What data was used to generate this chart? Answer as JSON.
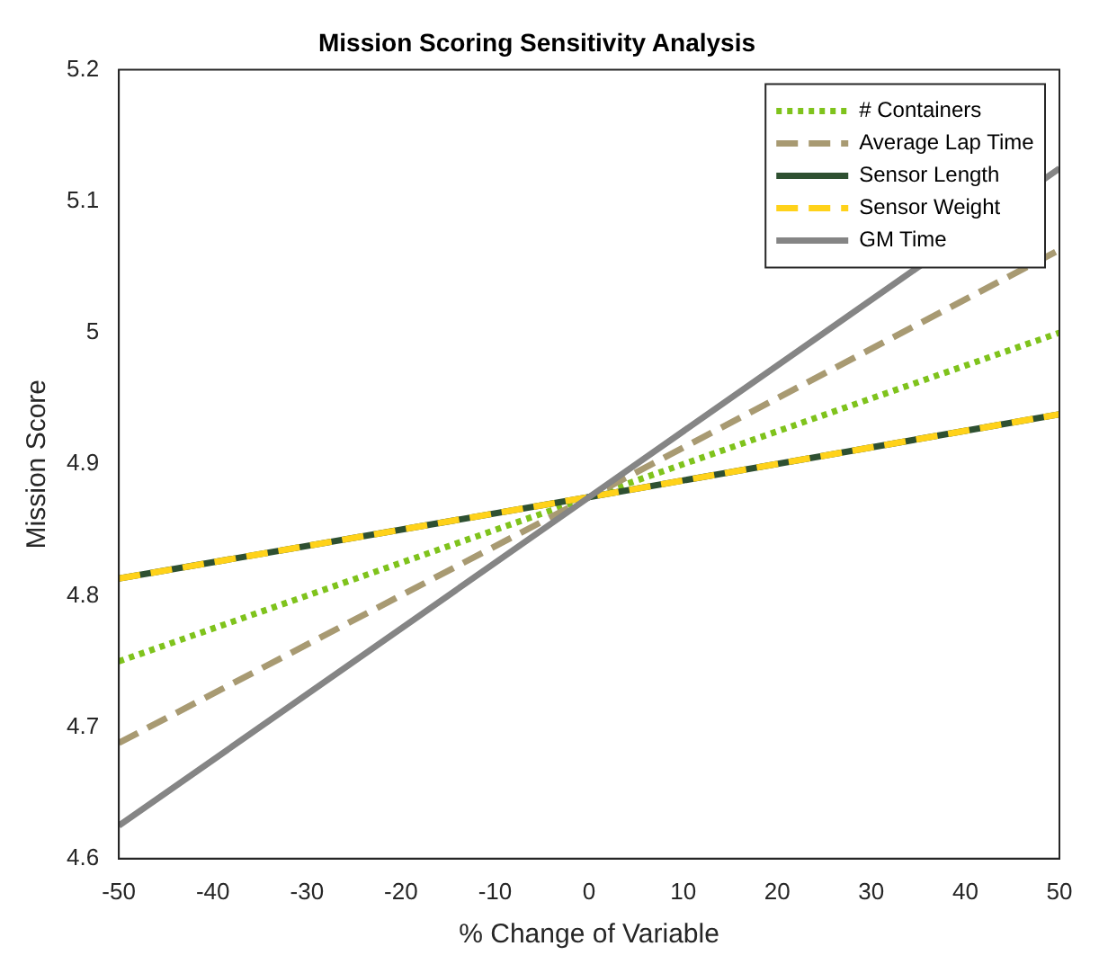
{
  "chart_data": {
    "type": "line",
    "title": "Mission Scoring Sensitivity Analysis",
    "xlabel": "% Change of Variable",
    "ylabel": "Mission Score",
    "x": [
      -50,
      0,
      50
    ],
    "series": [
      {
        "name": "# Containers",
        "color": "#7fc31c",
        "values": [
          4.75,
          4.875,
          5.0
        ],
        "line_style": "dotted"
      },
      {
        "name": "Average Lap Time",
        "color": "#a89a72",
        "values": [
          4.688,
          4.875,
          5.063
        ],
        "line_style": "dashed"
      },
      {
        "name": "Sensor Length",
        "color": "#2e5031",
        "values": [
          4.813,
          4.875,
          4.938
        ],
        "line_style": "solid"
      },
      {
        "name": "Sensor Weight",
        "color": "#ffd21a",
        "values": [
          4.813,
          4.875,
          4.938
        ],
        "line_style": "dashed"
      },
      {
        "name": "GM Time",
        "color": "#858585",
        "values": [
          4.625,
          4.875,
          5.125
        ],
        "line_style": "solid"
      }
    ],
    "xlim": [
      -50,
      50
    ],
    "xticks": [
      -50,
      -40,
      -30,
      -20,
      -10,
      0,
      10,
      20,
      30,
      40,
      50
    ],
    "ylim": [
      4.6,
      5.2
    ],
    "yticks": [
      4.6,
      4.7,
      4.8,
      4.9,
      5,
      5.1,
      5.2
    ],
    "grid": false,
    "legend": "top right",
    "marker": "none"
  }
}
